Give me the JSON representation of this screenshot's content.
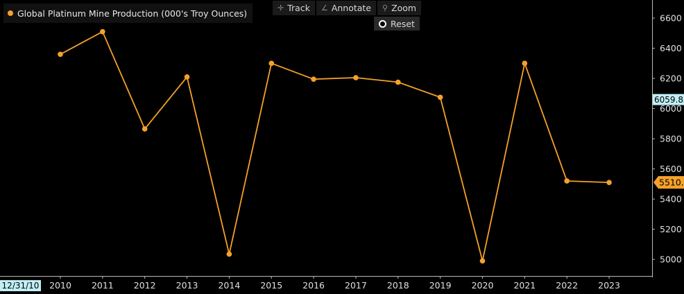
{
  "legend": {
    "label": "Global Platinum Mine Production (000's Troy Ounces)"
  },
  "toolbar": {
    "track_label": "Track",
    "annotate_label": "Annotate",
    "zoom_label": "Zoom",
    "reset_label": "Reset"
  },
  "date_label": "12/31/10",
  "colors": {
    "series": "#f5a12a",
    "background": "#000000",
    "crosshair_tag": "#bfeff5"
  },
  "markers": {
    "crosshair_value": "6059.88",
    "last_value": "5510.8"
  },
  "chart_data": {
    "type": "line",
    "title": "",
    "xlabel": "",
    "ylabel": "",
    "categories": [
      "2010",
      "2011",
      "2012",
      "2013",
      "2014",
      "2015",
      "2016",
      "2017",
      "2018",
      "2019",
      "2020",
      "2021",
      "2022",
      "2023"
    ],
    "series": [
      {
        "name": "Global Platinum Mine Production (000's Troy Ounces)",
        "values": [
          6360,
          6510,
          5865,
          6210,
          5035,
          6300,
          6195,
          6205,
          6175,
          6075,
          4990,
          6300,
          5520,
          5510
        ]
      }
    ],
    "ylim": [
      4890,
      6720
    ],
    "yticks": [
      5000,
      5200,
      5400,
      5600,
      5800,
      6000,
      6200,
      6400,
      6600
    ],
    "y_axis_side": "right",
    "grid": false,
    "legend_position": "top-left"
  }
}
